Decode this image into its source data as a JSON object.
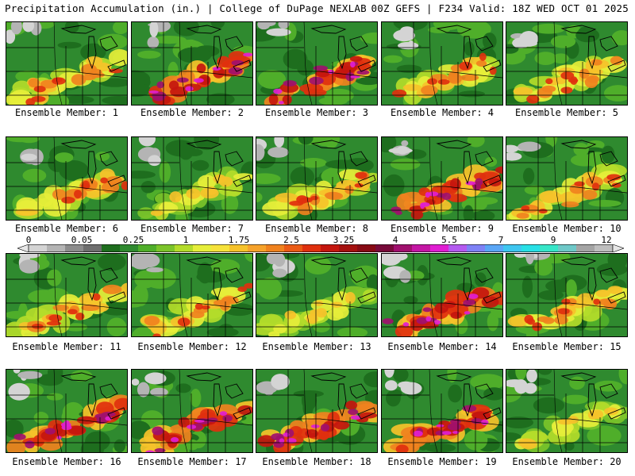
{
  "header": {
    "left": "Precipitation Accumulation (in.) | College of DuPage NEXLAB",
    "right": "00Z GEFS | F234 Valid: 18Z WED OCT 01 2025"
  },
  "member_prefix": "Ensemble Member: ",
  "members": [
    "1",
    "2",
    "3",
    "4",
    "5",
    "6",
    "7",
    "8",
    "9",
    "10",
    "11",
    "12",
    "13",
    "14",
    "15",
    "16",
    "17",
    "18",
    "19",
    "20"
  ],
  "colorbar": {
    "labels": [
      "0",
      "0.05",
      "0.25",
      "1",
      "1.75",
      "2.5",
      "3.25",
      "4",
      "5.5",
      "7",
      "9",
      "12"
    ],
    "colors": [
      "#d4d4d4",
      "#b4b4b4",
      "#8c8c8c",
      "#6e6e6e",
      "#1e6e1e",
      "#2f8a2f",
      "#4fae2a",
      "#7cc42a",
      "#b4dc2a",
      "#e6ee3a",
      "#f6e23a",
      "#f6c22a",
      "#f6a22a",
      "#f0821e",
      "#ea5a14",
      "#e0300e",
      "#c4160e",
      "#a4100e",
      "#880a14",
      "#780a3a",
      "#a0106e",
      "#c416a4",
      "#e01ed2",
      "#b45af0",
      "#7e82f6",
      "#5aa6f6",
      "#3ec6f0",
      "#28e0e6",
      "#36e6c8",
      "#6ec8c8",
      "#a4a4a4",
      "#bebebe"
    ]
  }
}
